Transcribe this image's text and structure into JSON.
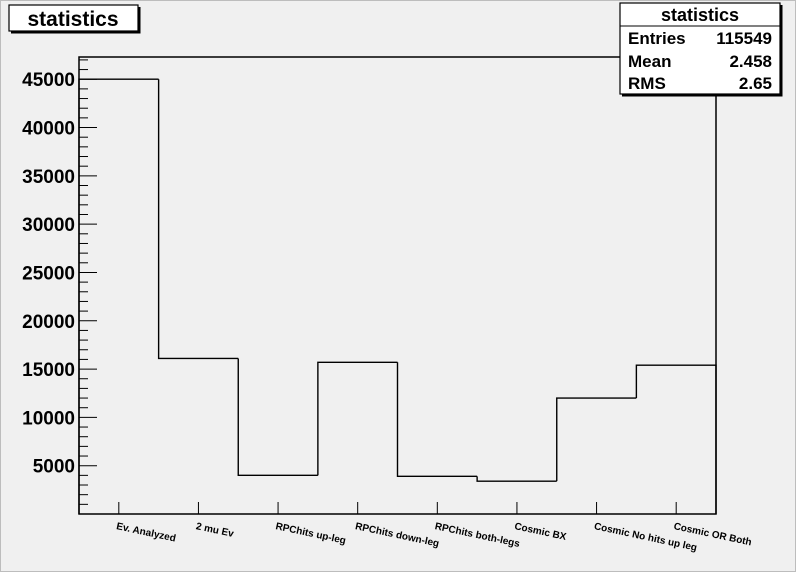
{
  "title_box": {
    "text": "statistics"
  },
  "stats_box": {
    "title": "statistics",
    "rows": [
      {
        "label": "Entries",
        "value": "115549"
      },
      {
        "label": "Mean",
        "value": "2.458"
      },
      {
        "label": "RMS",
        "value": "2.65"
      }
    ]
  },
  "colors": {
    "canvas_bg": "#f0f0f0",
    "plot_bg": "#f0f0f0",
    "frame": "#000000",
    "histogram_line": "#000000"
  },
  "chart_data": {
    "type": "bar",
    "style": "step-histogram",
    "title": "statistics",
    "xlabel": "",
    "ylabel": "",
    "categories": [
      "Ev. Analyzed",
      "2 mu Ev",
      "RPChits up-leg",
      "RPChits down-leg",
      "RPChits both-legs",
      "Cosmic BX",
      "Cosmic No hits up leg",
      "Cosmic OR Both"
    ],
    "values": [
      45000,
      16100,
      4000,
      15700,
      3900,
      3400,
      12000,
      15400
    ],
    "y_ticks": [
      5000,
      10000,
      15000,
      20000,
      25000,
      30000,
      35000,
      40000,
      45000
    ],
    "ylim": [
      0,
      47300
    ],
    "grid": false,
    "legend": "none"
  }
}
